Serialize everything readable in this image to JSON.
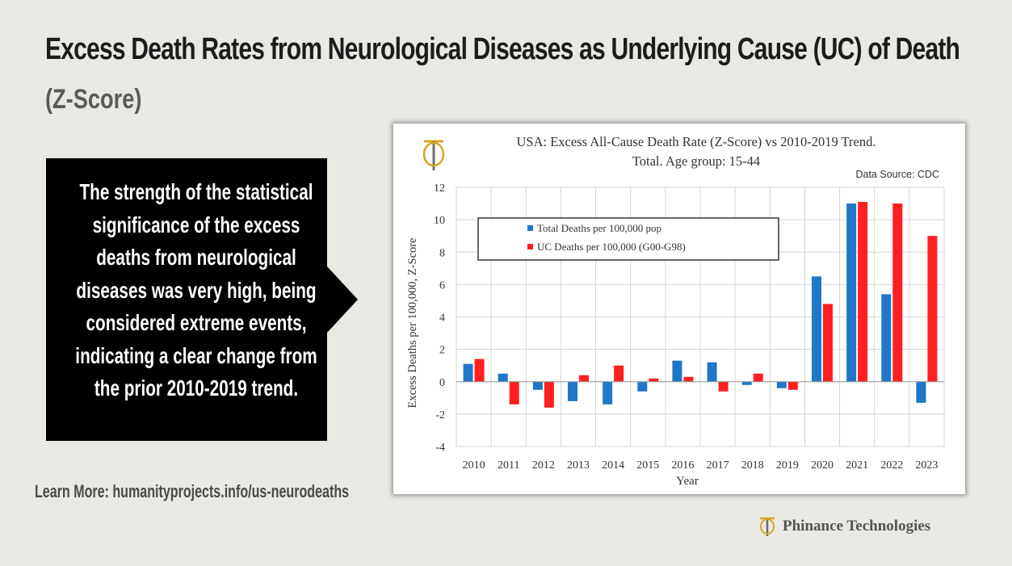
{
  "page": {
    "title": "Excess Death Rates from Neurological Diseases as Underlying Cause (UC) of Death",
    "subtitle": "(Z-Score)",
    "callout_lines": [
      "The strength of the statistical",
      "significance of the excess",
      "deaths from neurological",
      "diseases was very high, being",
      "considered extreme events,",
      "indicating a clear change from",
      "the prior 2010-2019 trend."
    ],
    "learn_more": "Learn More: humanityprojects.info/us-neurodeaths",
    "footer_brand": "Phinance Technologies",
    "logo_letters": "TP"
  },
  "colors": {
    "total": "#1f77c8",
    "uc": "#ff1f1f",
    "logo_gold": "#d4a72c",
    "logo_gray": "#6d6d6d"
  },
  "chart_data": {
    "type": "bar",
    "title": "USA: Excess All-Cause Death Rate (Z-Score) vs 2010-2019 Trend.",
    "subtitle": "Total. Age group: 15-44",
    "source": "Data Source: CDC",
    "xlabel": "Year",
    "ylabel": "Excess Deaths per 100,000, Z-Score",
    "ylim": [
      -4,
      12
    ],
    "yticks": [
      -4,
      -2,
      0,
      2,
      4,
      6,
      8,
      10,
      12
    ],
    "grid": true,
    "legend_position": "top-left",
    "categories": [
      "2010",
      "2011",
      "2012",
      "2013",
      "2014",
      "2015",
      "2016",
      "2017",
      "2018",
      "2019",
      "2020",
      "2021",
      "2022",
      "2023"
    ],
    "series": [
      {
        "name": "Total Deaths per 100,000 pop",
        "color_key": "total",
        "values": [
          1.1,
          0.5,
          -0.5,
          -1.2,
          -1.4,
          -0.6,
          1.3,
          1.2,
          -0.2,
          -0.4,
          6.5,
          11.0,
          5.4,
          -1.3
        ]
      },
      {
        "name": "UC Deaths per 100,000 (G00-G98)",
        "color_key": "uc",
        "values": [
          1.4,
          -1.4,
          -1.6,
          0.4,
          1.0,
          0.2,
          0.3,
          -0.6,
          0.5,
          -0.5,
          4.8,
          11.1,
          11.0,
          9.0
        ]
      }
    ]
  }
}
